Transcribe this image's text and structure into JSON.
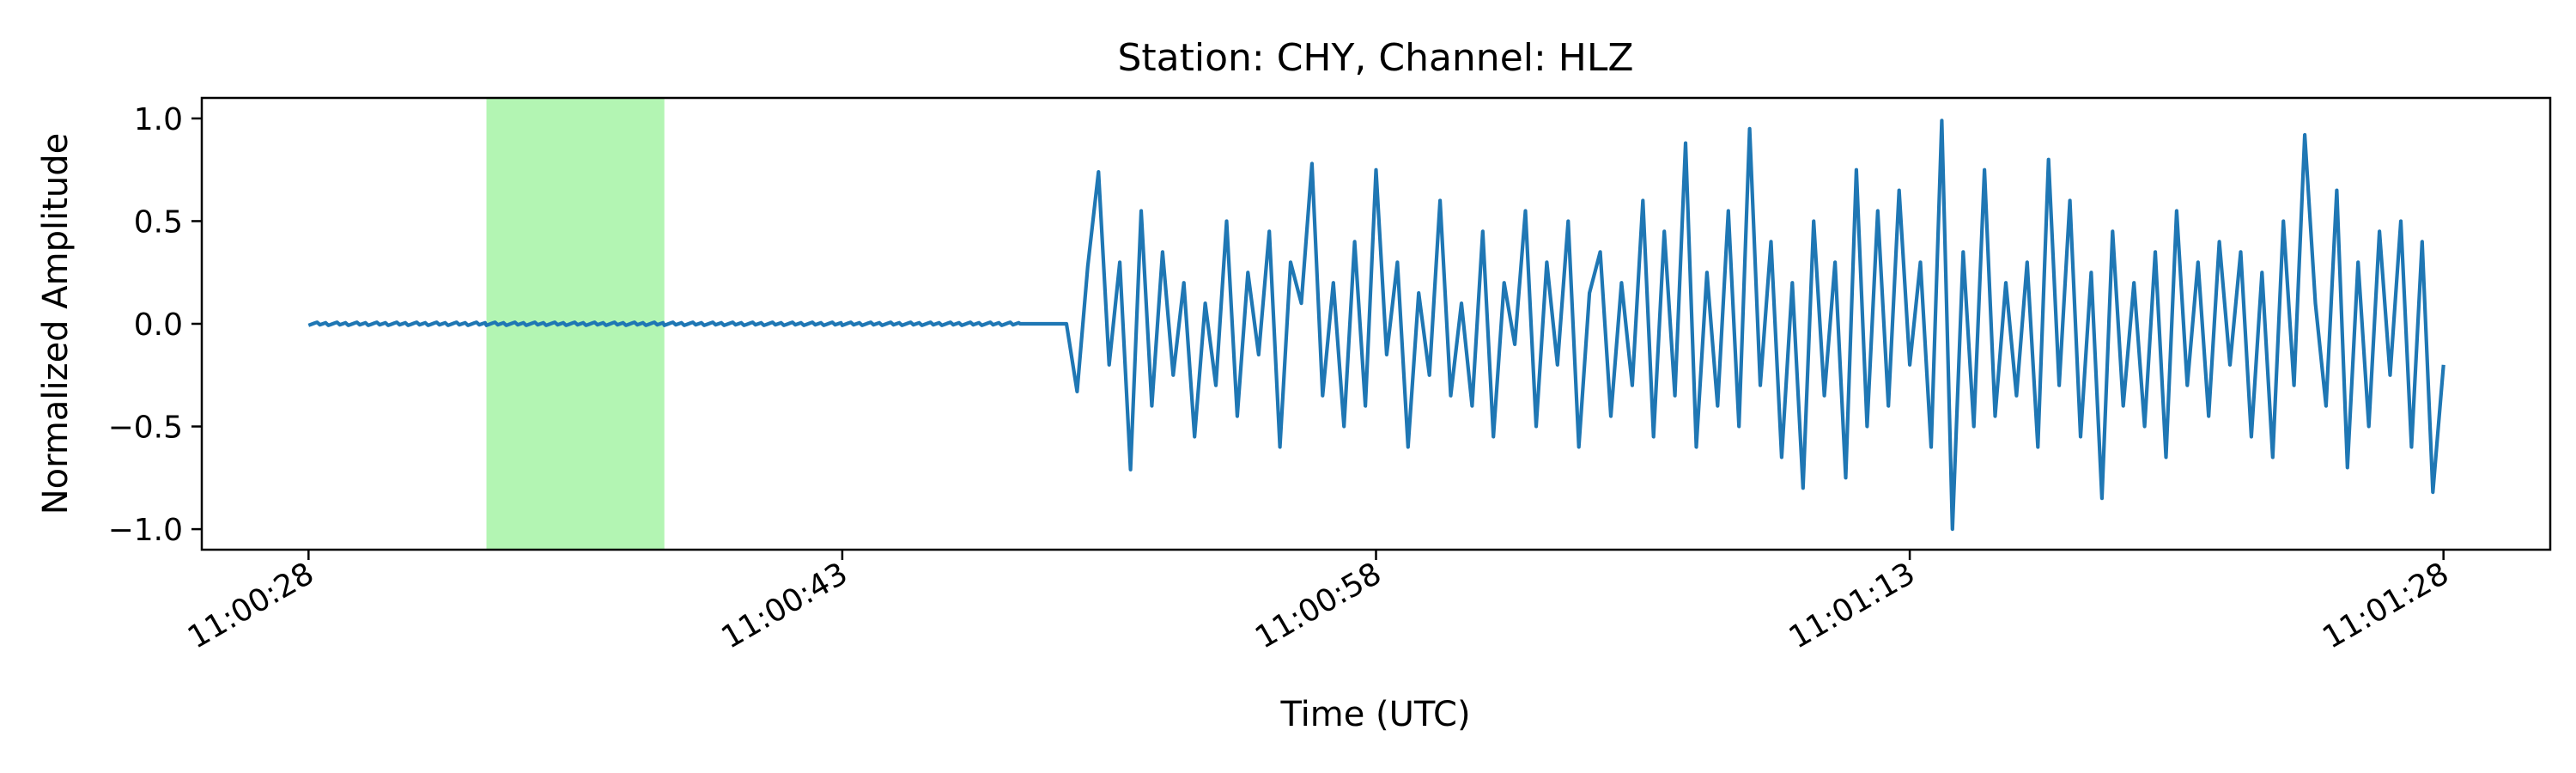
{
  "chart_data": {
    "type": "line",
    "title": "Station: CHY, Channel: HLZ",
    "xlabel": "Time (UTC)",
    "ylabel": "Normalized Amplitude",
    "xlim": [
      -3,
      63
    ],
    "ylim": [
      -1.1,
      1.1
    ],
    "x_ticks": [
      {
        "value": 0,
        "label": "11:00:28"
      },
      {
        "value": 15,
        "label": "11:00:43"
      },
      {
        "value": 30,
        "label": "11:00:58"
      },
      {
        "value": 45,
        "label": "11:01:13"
      },
      {
        "value": 60,
        "label": "11:01:28"
      }
    ],
    "y_ticks": [
      {
        "value": 1.0,
        "label": "1.0"
      },
      {
        "value": 0.5,
        "label": "0.5"
      },
      {
        "value": 0.0,
        "label": "0.0"
      },
      {
        "value": -0.5,
        "label": "−0.5"
      },
      {
        "value": -1.0,
        "label": "−1.0"
      }
    ],
    "shaded_region": {
      "x_start": 5.0,
      "x_end": 10.0,
      "color": "#b3f5b3"
    },
    "series": [
      {
        "color": "#1f77b4",
        "x": [
          0,
          5,
          10,
          15,
          20,
          21.3,
          21.6,
          21.9,
          22.2,
          22.5,
          22.8,
          23.1,
          23.4,
          23.7,
          24.0,
          24.3,
          24.6,
          24.9,
          25.2,
          25.5,
          25.8,
          26.1,
          26.4,
          26.7,
          27.0,
          27.3,
          27.6,
          27.9,
          28.2,
          28.5,
          28.8,
          29.1,
          29.4,
          29.7,
          30.0,
          30.3,
          30.6,
          30.9,
          31.2,
          31.5,
          31.8,
          32.1,
          32.4,
          32.7,
          33.0,
          33.3,
          33.6,
          33.9,
          34.2,
          34.5,
          34.8,
          35.1,
          35.4,
          35.7,
          36.0,
          36.3,
          36.6,
          36.9,
          37.2,
          37.5,
          37.8,
          38.1,
          38.4,
          38.7,
          39.0,
          39.3,
          39.6,
          39.9,
          40.2,
          40.5,
          40.8,
          41.1,
          41.4,
          41.7,
          42.0,
          42.3,
          42.6,
          42.9,
          43.2,
          43.5,
          43.8,
          44.1,
          44.4,
          44.7,
          45.0,
          45.3,
          45.6,
          45.9,
          46.2,
          46.5,
          46.8,
          47.1,
          47.4,
          47.7,
          48.0,
          48.3,
          48.6,
          48.9,
          49.2,
          49.5,
          49.8,
          50.1,
          50.4,
          50.7,
          51.0,
          51.3,
          51.6,
          51.9,
          52.2,
          52.5,
          52.8,
          53.1,
          53.4,
          53.7,
          54.0,
          54.3,
          54.6,
          54.9,
          55.2,
          55.5,
          55.8,
          56.1,
          56.4,
          56.7,
          57.0,
          57.3,
          57.6,
          57.9,
          58.2,
          58.5,
          58.8,
          59.1,
          59.4,
          59.7,
          60.0
        ],
        "y": [
          0.0,
          0.0,
          0.0,
          0.0,
          0.0,
          0.0,
          -0.33,
          0.28,
          0.74,
          -0.2,
          0.3,
          -0.71,
          0.55,
          -0.4,
          0.35,
          -0.25,
          0.2,
          -0.55,
          0.1,
          -0.3,
          0.5,
          -0.45,
          0.25,
          -0.15,
          0.45,
          -0.6,
          0.3,
          0.1,
          0.78,
          -0.35,
          0.2,
          -0.5,
          0.4,
          -0.4,
          0.75,
          -0.15,
          0.3,
          -0.6,
          0.15,
          -0.25,
          0.6,
          -0.35,
          0.1,
          -0.4,
          0.45,
          -0.55,
          0.2,
          -0.1,
          0.55,
          -0.5,
          0.3,
          -0.2,
          0.5,
          -0.6,
          0.15,
          0.35,
          -0.45,
          0.2,
          -0.3,
          0.6,
          -0.55,
          0.45,
          -0.35,
          0.88,
          -0.6,
          0.25,
          -0.4,
          0.55,
          -0.5,
          0.95,
          -0.3,
          0.4,
          -0.65,
          0.2,
          -0.8,
          0.5,
          -0.35,
          0.3,
          -0.75,
          0.75,
          -0.5,
          0.55,
          -0.4,
          0.65,
          -0.2,
          0.3,
          -0.6,
          0.99,
          -1.0,
          0.35,
          -0.5,
          0.75,
          -0.45,
          0.2,
          -0.35,
          0.3,
          -0.6,
          0.8,
          -0.3,
          0.6,
          -0.55,
          0.25,
          -0.85,
          0.45,
          -0.4,
          0.2,
          -0.5,
          0.35,
          -0.65,
          0.55,
          -0.3,
          0.3,
          -0.45,
          0.4,
          -0.2,
          0.35,
          -0.55,
          0.25,
          -0.65,
          0.5,
          -0.3,
          0.92,
          0.1,
          -0.4,
          0.65,
          -0.7,
          0.3,
          -0.5,
          0.45,
          -0.25,
          0.5,
          -0.6,
          0.4,
          -0.82,
          -0.2
        ]
      }
    ],
    "grid": false,
    "legend": "none"
  }
}
